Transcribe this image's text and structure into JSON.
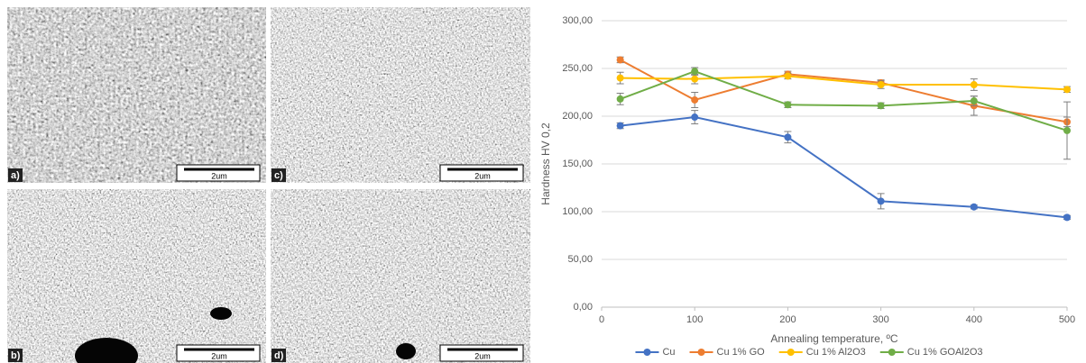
{
  "panels": [
    {
      "label": "a)",
      "scale": "2um"
    },
    {
      "label": "c)",
      "scale": "2um"
    },
    {
      "label": "b)",
      "scale": "2um"
    },
    {
      "label": "d)",
      "scale": "2um"
    }
  ],
  "chart_data": {
    "type": "line",
    "x_label": "Annealing temperature, ºC",
    "y_label": "Hardness HV 0,2",
    "x": [
      20,
      100,
      200,
      300,
      400,
      500
    ],
    "xlim": [
      0,
      500
    ],
    "xticks": [
      0,
      100,
      200,
      300,
      400,
      500
    ],
    "ylim": [
      0,
      300
    ],
    "yticks": [
      {
        "value": 0,
        "label": "0,00"
      },
      {
        "value": 50,
        "label": "50,00"
      },
      {
        "value": 100,
        "label": "100,00"
      },
      {
        "value": 150,
        "label": "150,00"
      },
      {
        "value": 200,
        "label": "200,00"
      },
      {
        "value": 250,
        "label": "250,00"
      },
      {
        "value": 300,
        "label": "300,00"
      }
    ],
    "grid": true,
    "legend": "bottom",
    "series": [
      {
        "name": "Cu",
        "color": "#4472c4",
        "values": [
          190,
          199,
          178,
          111,
          105,
          94
        ],
        "errors": [
          3,
          7,
          6,
          8,
          2,
          2
        ]
      },
      {
        "name": "Cu 1% GO",
        "color": "#ed7d31",
        "values": [
          259,
          217,
          244,
          235,
          211,
          194
        ],
        "errors": [
          3,
          8,
          3,
          3,
          10,
          5
        ]
      },
      {
        "name": "Cu 1% Al2O3",
        "color": "#ffc000",
        "values": [
          240,
          239,
          242,
          233,
          233,
          228
        ],
        "errors": [
          6,
          5,
          3,
          4,
          6,
          3
        ]
      },
      {
        "name": "Cu 1% GOAl2O3",
        "color": "#70ad47",
        "values": [
          218,
          247,
          212,
          211,
          216,
          185
        ],
        "errors": [
          6,
          4,
          3,
          3,
          5,
          30
        ]
      }
    ]
  }
}
